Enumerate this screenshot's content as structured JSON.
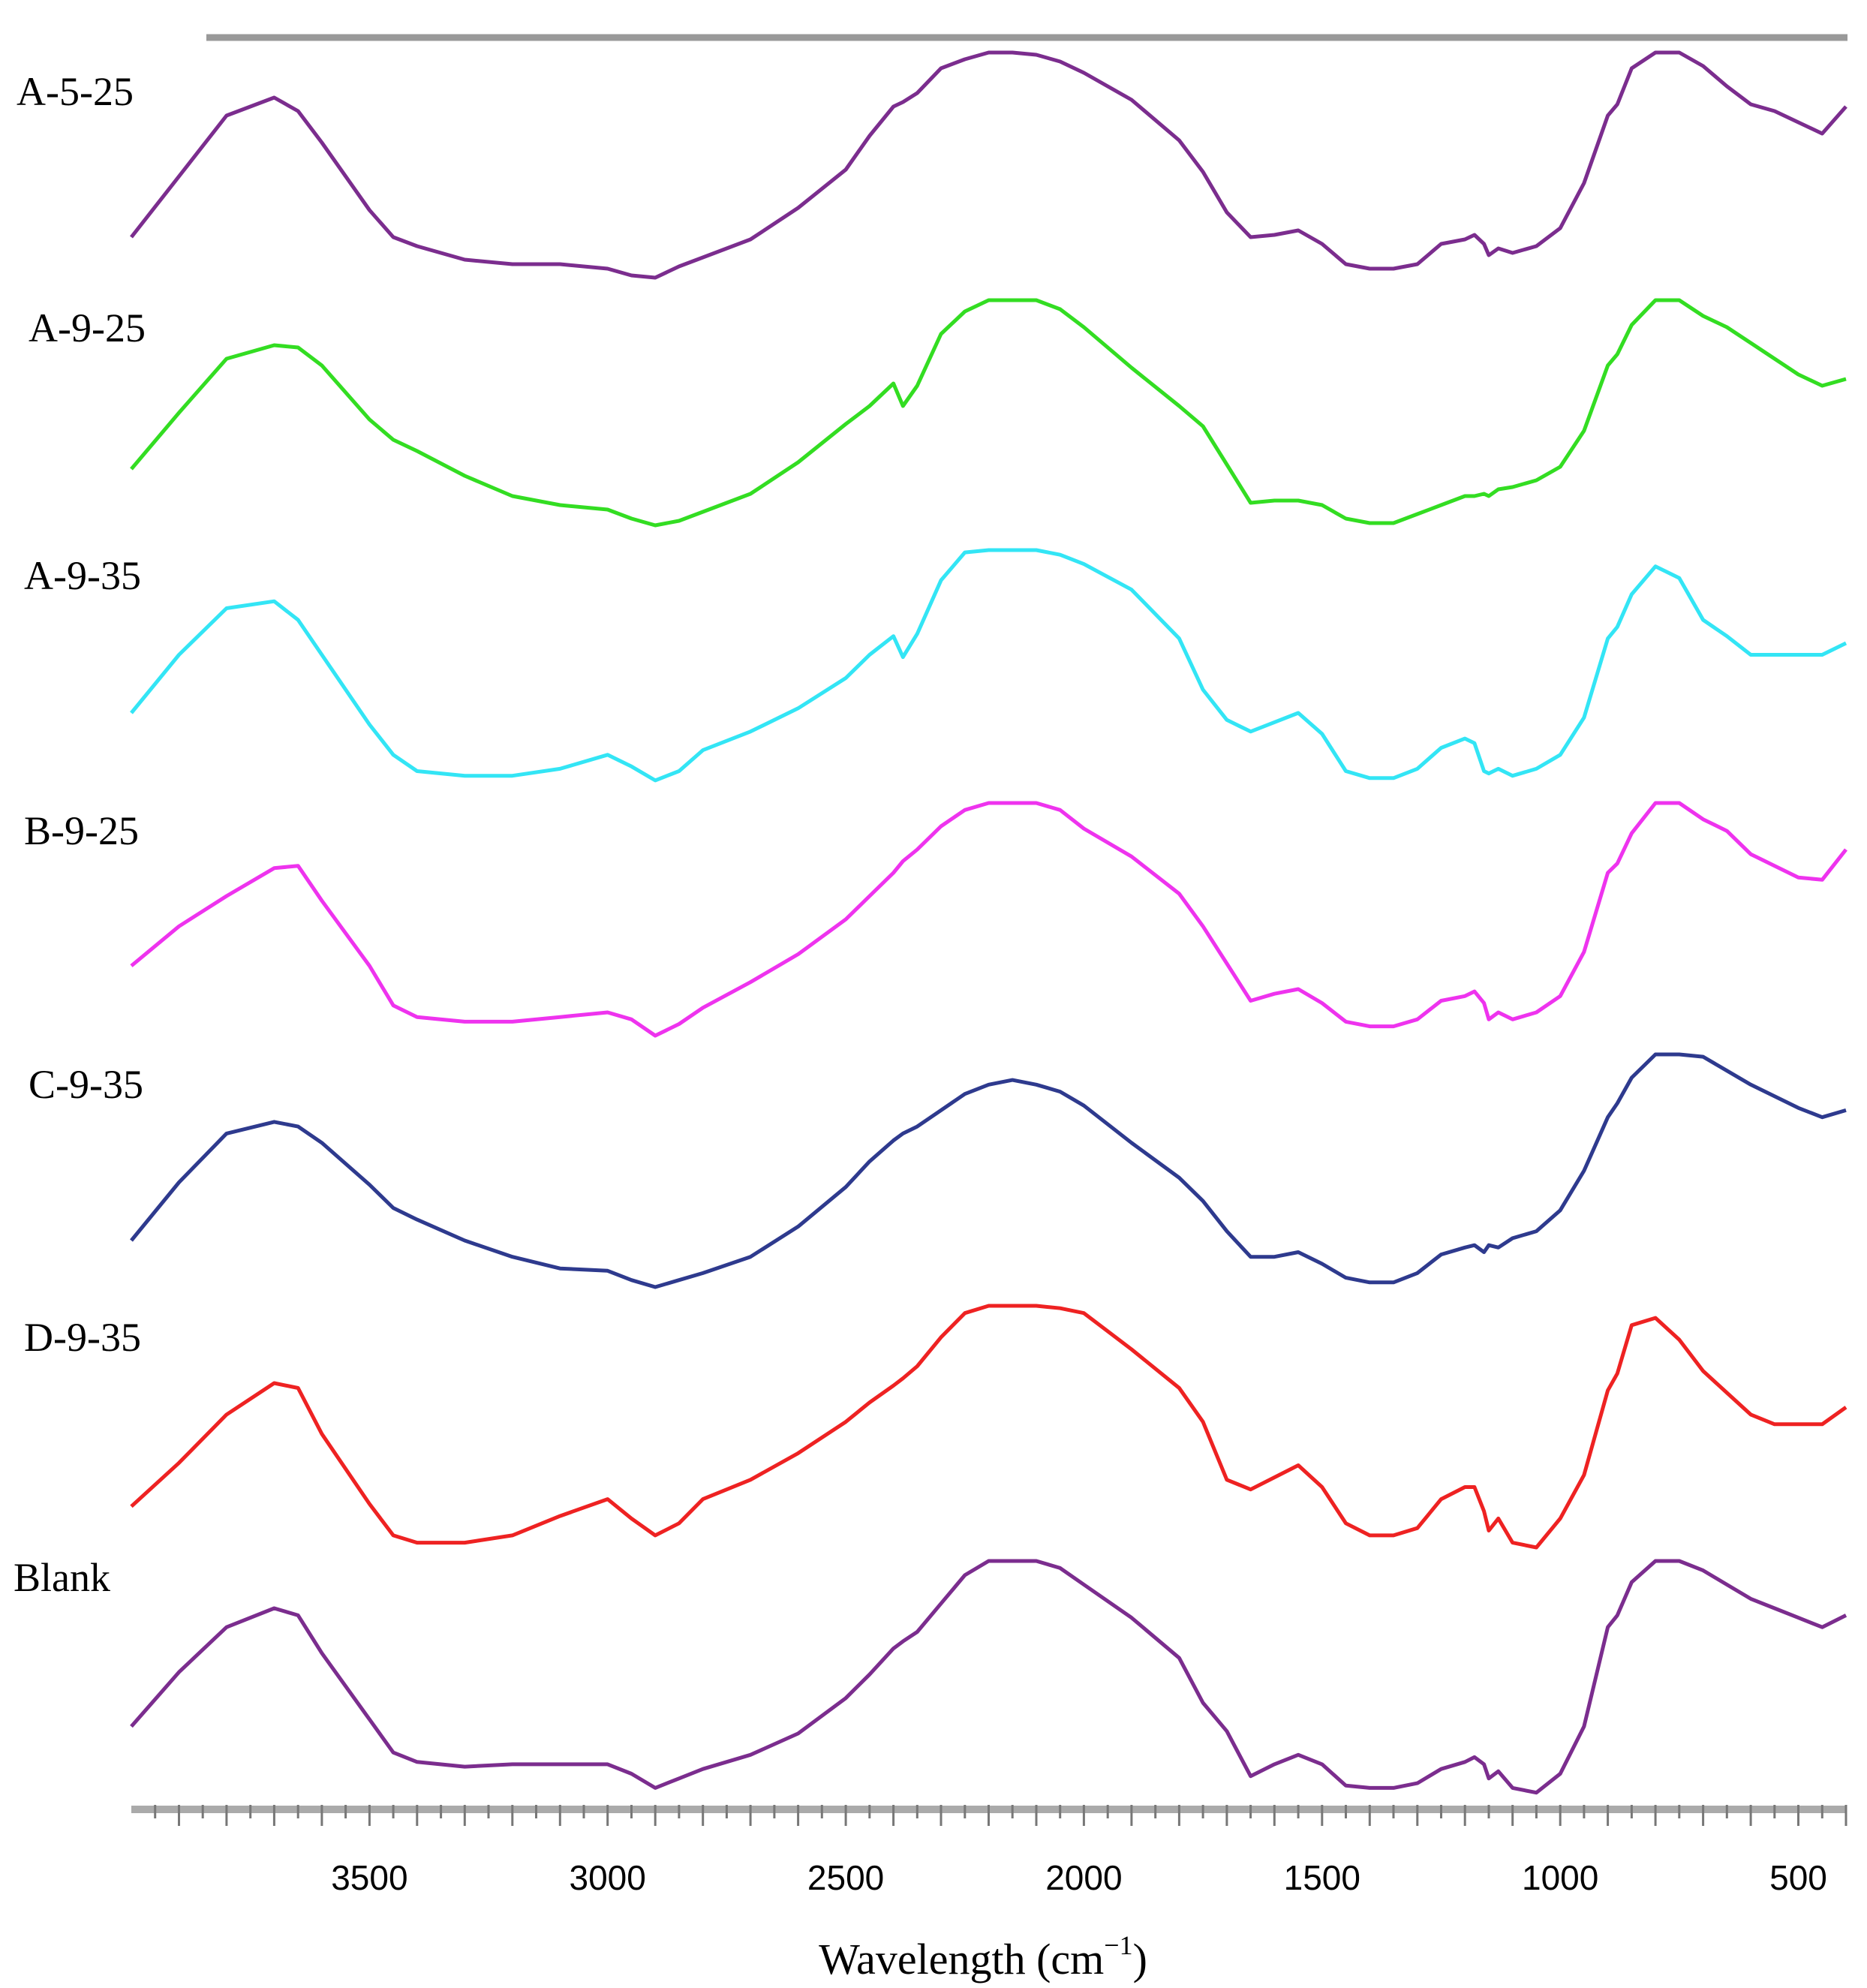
{
  "chart_data": {
    "type": "line",
    "title": "",
    "xlabel_main": "Wavelength (cm",
    "xlabel_sup": "−1",
    "xlabel_close": ")",
    "ylabel": "",
    "xlim": [
      4000,
      400
    ],
    "x_reversed": true,
    "grid": false,
    "legend": "labels left of each trace",
    "xticks": [
      "3500",
      "3000",
      "2500",
      "2000",
      "1500",
      "1000",
      "500"
    ],
    "xtick_values": [
      3500,
      3000,
      2500,
      2000,
      1500,
      1000,
      500
    ],
    "x": [
      4000,
      3900,
      3800,
      3700,
      3650,
      3600,
      3500,
      3450,
      3400,
      3300,
      3200,
      3100,
      3000,
      2950,
      2900,
      2850,
      2800,
      2700,
      2600,
      2500,
      2450,
      2400,
      2380,
      2350,
      2300,
      2250,
      2200,
      2150,
      2100,
      2050,
      2000,
      1900,
      1800,
      1750,
      1700,
      1650,
      1600,
      1550,
      1500,
      1450,
      1400,
      1350,
      1300,
      1250,
      1200,
      1180,
      1160,
      1150,
      1130,
      1100,
      1050,
      1000,
      950,
      900,
      880,
      850,
      800,
      750,
      700,
      650,
      600,
      550,
      500,
      450,
      400
    ],
    "series": [
      {
        "name": "A-5-25",
        "color": "#7b2d8e",
        "values": [
          0.18,
          0.45,
          0.72,
          0.8,
          0.74,
          0.6,
          0.3,
          0.18,
          0.14,
          0.08,
          0.06,
          0.06,
          0.04,
          0.01,
          0.0,
          0.05,
          0.09,
          0.17,
          0.31,
          0.48,
          0.63,
          0.76,
          0.78,
          0.82,
          0.93,
          0.97,
          1.0,
          1.0,
          0.99,
          0.96,
          0.91,
          0.79,
          0.61,
          0.47,
          0.29,
          0.18,
          0.19,
          0.21,
          0.15,
          0.06,
          0.04,
          0.04,
          0.06,
          0.15,
          0.17,
          0.19,
          0.15,
          0.1,
          0.13,
          0.11,
          0.14,
          0.22,
          0.42,
          0.72,
          0.77,
          0.93,
          1.0,
          1.0,
          0.94,
          0.85,
          0.77,
          0.74,
          0.69,
          0.64,
          0.76
        ]
      },
      {
        "name": "A-9-25",
        "color": "#33dd22",
        "values": [
          0.25,
          0.5,
          0.74,
          0.8,
          0.79,
          0.71,
          0.47,
          0.38,
          0.33,
          0.22,
          0.13,
          0.09,
          0.07,
          0.03,
          0.0,
          0.02,
          0.06,
          0.14,
          0.28,
          0.45,
          0.53,
          0.63,
          0.53,
          0.62,
          0.85,
          0.95,
          1.0,
          1.0,
          1.0,
          0.96,
          0.88,
          0.7,
          0.53,
          0.44,
          0.27,
          0.1,
          0.11,
          0.11,
          0.09,
          0.03,
          0.01,
          0.01,
          0.05,
          0.09,
          0.13,
          0.13,
          0.14,
          0.13,
          0.16,
          0.17,
          0.2,
          0.26,
          0.42,
          0.71,
          0.76,
          0.89,
          1.0,
          1.0,
          0.93,
          0.88,
          0.81,
          0.74,
          0.67,
          0.62,
          0.65
        ]
      },
      {
        "name": "A-9-35",
        "color": "#33e5f5",
        "values": [
          0.3,
          0.55,
          0.75,
          0.78,
          0.7,
          0.55,
          0.25,
          0.12,
          0.05,
          0.03,
          0.03,
          0.06,
          0.12,
          0.07,
          0.01,
          0.05,
          0.14,
          0.22,
          0.32,
          0.45,
          0.55,
          0.63,
          0.54,
          0.64,
          0.87,
          0.99,
          1.0,
          1.0,
          1.0,
          0.98,
          0.94,
          0.83,
          0.62,
          0.4,
          0.27,
          0.22,
          0.26,
          0.3,
          0.21,
          0.05,
          0.02,
          0.02,
          0.06,
          0.15,
          0.19,
          0.17,
          0.05,
          0.04,
          0.06,
          0.03,
          0.06,
          0.12,
          0.28,
          0.62,
          0.67,
          0.81,
          0.93,
          0.88,
          0.7,
          0.63,
          0.55,
          0.55,
          0.55,
          0.55,
          0.6
        ]
      },
      {
        "name": "B-9-25",
        "color": "#ee33ee",
        "values": [
          0.3,
          0.47,
          0.6,
          0.72,
          0.73,
          0.58,
          0.3,
          0.13,
          0.08,
          0.06,
          0.06,
          0.08,
          0.1,
          0.07,
          0.0,
          0.05,
          0.12,
          0.23,
          0.35,
          0.5,
          0.6,
          0.7,
          0.75,
          0.8,
          0.9,
          0.97,
          1.0,
          1.0,
          1.0,
          0.97,
          0.89,
          0.77,
          0.61,
          0.47,
          0.31,
          0.15,
          0.18,
          0.2,
          0.14,
          0.06,
          0.04,
          0.04,
          0.07,
          0.15,
          0.17,
          0.19,
          0.14,
          0.07,
          0.1,
          0.07,
          0.1,
          0.17,
          0.36,
          0.7,
          0.74,
          0.87,
          1.0,
          1.0,
          0.93,
          0.88,
          0.78,
          0.73,
          0.68,
          0.67,
          0.8
        ]
      },
      {
        "name": "C-9-35",
        "color": "#2e3a8e",
        "values": [
          0.2,
          0.45,
          0.66,
          0.71,
          0.69,
          0.62,
          0.44,
          0.34,
          0.29,
          0.2,
          0.13,
          0.08,
          0.07,
          0.03,
          0.0,
          0.03,
          0.06,
          0.13,
          0.26,
          0.43,
          0.54,
          0.63,
          0.66,
          0.69,
          0.76,
          0.83,
          0.87,
          0.89,
          0.87,
          0.84,
          0.78,
          0.62,
          0.47,
          0.37,
          0.24,
          0.13,
          0.13,
          0.15,
          0.1,
          0.04,
          0.02,
          0.02,
          0.06,
          0.14,
          0.17,
          0.18,
          0.15,
          0.18,
          0.17,
          0.21,
          0.24,
          0.33,
          0.5,
          0.73,
          0.79,
          0.9,
          1.0,
          1.0,
          0.99,
          0.93,
          0.87,
          0.82,
          0.77,
          0.73,
          0.76
        ]
      },
      {
        "name": "D-9-35",
        "color": "#ee2222",
        "values": [
          0.17,
          0.35,
          0.55,
          0.68,
          0.66,
          0.47,
          0.18,
          0.05,
          0.02,
          0.02,
          0.05,
          0.13,
          0.2,
          0.12,
          0.05,
          0.1,
          0.2,
          0.28,
          0.39,
          0.52,
          0.6,
          0.67,
          0.7,
          0.75,
          0.87,
          0.97,
          1.0,
          1.0,
          1.0,
          0.99,
          0.97,
          0.82,
          0.66,
          0.52,
          0.28,
          0.24,
          0.29,
          0.34,
          0.25,
          0.1,
          0.05,
          0.05,
          0.08,
          0.2,
          0.25,
          0.25,
          0.15,
          0.07,
          0.12,
          0.02,
          0.0,
          0.12,
          0.3,
          0.65,
          0.72,
          0.92,
          0.95,
          0.86,
          0.73,
          0.64,
          0.55,
          0.51,
          0.51,
          0.51,
          0.58
        ]
      },
      {
        "name": "Blank",
        "color": "#7b2d8e",
        "values": [
          0.3,
          0.53,
          0.72,
          0.8,
          0.77,
          0.61,
          0.33,
          0.19,
          0.15,
          0.13,
          0.14,
          0.14,
          0.14,
          0.1,
          0.04,
          0.08,
          0.12,
          0.18,
          0.27,
          0.42,
          0.52,
          0.63,
          0.66,
          0.7,
          0.82,
          0.94,
          1.0,
          1.0,
          1.0,
          0.97,
          0.9,
          0.76,
          0.59,
          0.4,
          0.28,
          0.09,
          0.14,
          0.18,
          0.14,
          0.05,
          0.04,
          0.04,
          0.06,
          0.12,
          0.15,
          0.17,
          0.14,
          0.08,
          0.11,
          0.04,
          0.02,
          0.1,
          0.3,
          0.72,
          0.77,
          0.91,
          1.0,
          1.0,
          0.96,
          0.9,
          0.84,
          0.8,
          0.76,
          0.72,
          0.77
        ]
      }
    ]
  }
}
